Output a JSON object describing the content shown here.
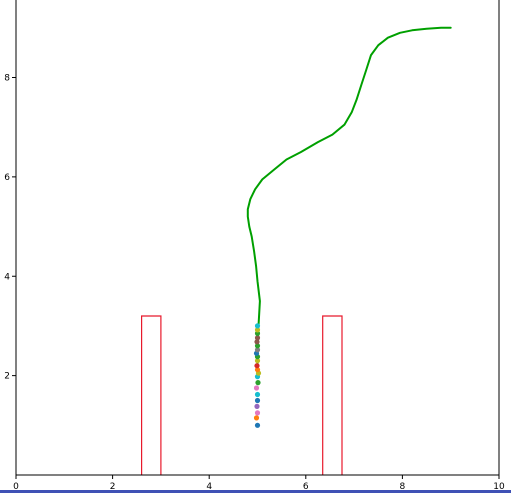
{
  "chart_data": {
    "type": "line",
    "xlim": [
      0,
      10
    ],
    "ylim": [
      0,
      9.6
    ],
    "xticks": [
      0,
      2,
      4,
      6,
      8,
      10
    ],
    "yticks": [
      2,
      4,
      6,
      8
    ],
    "xtick_labels": [
      "0",
      "2",
      "4",
      "6",
      "8",
      "10"
    ],
    "ytick_labels": [
      "2",
      "4",
      "6",
      "8"
    ],
    "grid": false,
    "title": "",
    "xlabel": "",
    "ylabel": "",
    "obstacles": [
      {
        "color": "#e8192c",
        "x": [
          2.6,
          2.6,
          3.0,
          3.0
        ],
        "y": [
          0,
          3.2,
          3.2,
          0
        ]
      },
      {
        "color": "#e8192c",
        "x": [
          6.35,
          6.35,
          6.75,
          6.75
        ],
        "y": [
          0,
          3.2,
          3.2,
          0
        ]
      }
    ],
    "path": {
      "color": "#00a000",
      "x": [
        5.0,
        5.0,
        5.02,
        5.05,
        5.0,
        4.97,
        4.93,
        4.88,
        4.83,
        4.8,
        4.8,
        4.85,
        4.95,
        5.1,
        5.35,
        5.6,
        5.9,
        6.25,
        6.55,
        6.8,
        6.95,
        7.05,
        7.15,
        7.25,
        7.35,
        7.5,
        7.7,
        7.95,
        8.2,
        8.5,
        8.8,
        9.0
      ],
      "y": [
        2.0,
        2.5,
        3.0,
        3.5,
        3.9,
        4.2,
        4.5,
        4.8,
        5.0,
        5.2,
        5.35,
        5.55,
        5.75,
        5.95,
        6.15,
        6.35,
        6.5,
        6.7,
        6.85,
        7.05,
        7.3,
        7.55,
        7.85,
        8.15,
        8.45,
        8.65,
        8.8,
        8.9,
        8.95,
        8.98,
        9.0,
        9.0
      ]
    },
    "points": [
      {
        "x": 5.0,
        "y": 1.0,
        "color": "#1f77b4"
      },
      {
        "x": 4.98,
        "y": 1.15,
        "color": "#ff7f0e"
      },
      {
        "x": 5.0,
        "y": 1.25,
        "color": "#e377c2"
      },
      {
        "x": 4.99,
        "y": 1.38,
        "color": "#9467bd"
      },
      {
        "x": 5.0,
        "y": 1.5,
        "color": "#1f77b4"
      },
      {
        "x": 5.0,
        "y": 1.62,
        "color": "#17becf"
      },
      {
        "x": 4.98,
        "y": 1.75,
        "color": "#e377c2"
      },
      {
        "x": 5.01,
        "y": 1.86,
        "color": "#2ca02c"
      },
      {
        "x": 5.0,
        "y": 1.98,
        "color": "#17becf"
      },
      {
        "x": 5.02,
        "y": 2.05,
        "color": "#bcbd22"
      },
      {
        "x": 5.0,
        "y": 2.12,
        "color": "#ff7f0e"
      },
      {
        "x": 4.99,
        "y": 2.2,
        "color": "#d62728"
      },
      {
        "x": 5.0,
        "y": 2.3,
        "color": "#bcbd22"
      },
      {
        "x": 5.0,
        "y": 2.38,
        "color": "#2ca02c"
      },
      {
        "x": 4.98,
        "y": 2.45,
        "color": "#1f77b4"
      },
      {
        "x": 5.0,
        "y": 2.52,
        "color": "#7f7f7f"
      },
      {
        "x": 5.0,
        "y": 2.6,
        "color": "#2ca02c"
      },
      {
        "x": 4.99,
        "y": 2.68,
        "color": "#8c564b"
      },
      {
        "x": 5.0,
        "y": 2.76,
        "color": "#8c564b"
      },
      {
        "x": 5.0,
        "y": 2.85,
        "color": "#2ca02c"
      },
      {
        "x": 5.0,
        "y": 2.92,
        "color": "#bcbd22"
      },
      {
        "x": 5.0,
        "y": 3.0,
        "color": "#17becf"
      }
    ]
  }
}
